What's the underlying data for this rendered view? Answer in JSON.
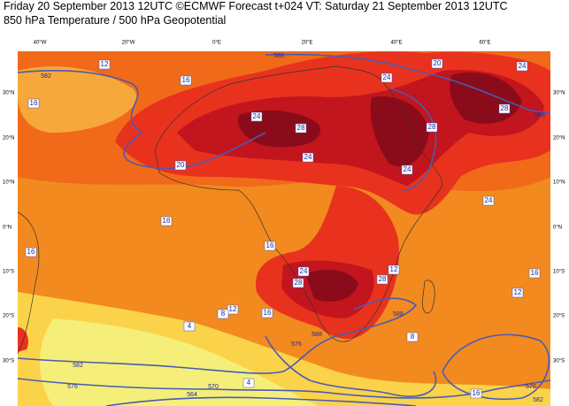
{
  "header": {
    "line1": "Friday 20 September 2013 12UTC ©ECMWF Forecast t+024 VT: Saturday 21 September 2013 12UTC",
    "line2": "850 hPa Temperature / 500 hPa Geopotential"
  },
  "lon_labels": [
    "40°W",
    "20°W",
    "0°E",
    "20°E",
    "40°E",
    "60°E"
  ],
  "lat_labels": [
    "30°N",
    "20°N",
    "10°N",
    "0°N",
    "10°S",
    "20°S",
    "30°S"
  ],
  "temperature_labels": [
    12,
    16,
    16,
    20,
    16,
    16,
    24,
    28,
    24,
    24,
    28,
    24,
    24,
    28,
    24,
    24,
    28,
    28,
    16,
    16,
    12,
    8,
    4,
    16,
    12,
    4,
    12,
    8,
    20,
    16
  ],
  "geopotential_labels": [
    582,
    588,
    588,
    588,
    582,
    576,
    570,
    564,
    576,
    588,
    576,
    582
  ]
}
